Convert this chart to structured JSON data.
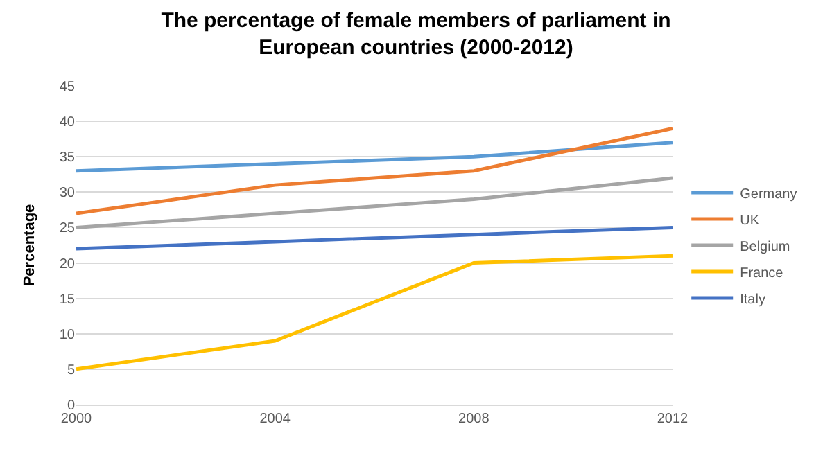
{
  "chart_data": {
    "type": "line",
    "title": "The percentage of female members of parliament in European countries (2000-2012)",
    "ylabel": "Percentage",
    "x": [
      2000,
      2004,
      2008,
      2012
    ],
    "series": [
      {
        "name": "Germany",
        "color": "#5b9bd5",
        "values": [
          33,
          34,
          35,
          37
        ]
      },
      {
        "name": "UK",
        "color": "#ed7d31",
        "values": [
          27,
          31,
          33,
          39
        ]
      },
      {
        "name": "Belgium",
        "color": "#a5a5a5",
        "values": [
          25,
          27,
          29,
          32
        ]
      },
      {
        "name": "France",
        "color": "#ffc000",
        "values": [
          5,
          9,
          20,
          21
        ]
      },
      {
        "name": "Italy",
        "color": "#4472c4",
        "values": [
          22,
          23,
          24,
          25
        ]
      }
    ],
    "xlim": [
      2000,
      2012
    ],
    "xticks": [
      2000,
      2004,
      2008,
      2012
    ],
    "ylim": [
      0,
      45
    ],
    "yticks": [
      0,
      5,
      10,
      15,
      20,
      25,
      30,
      35,
      40,
      45
    ],
    "grid": "y",
    "legend": "right",
    "marker": "none",
    "line_style": "solid"
  }
}
